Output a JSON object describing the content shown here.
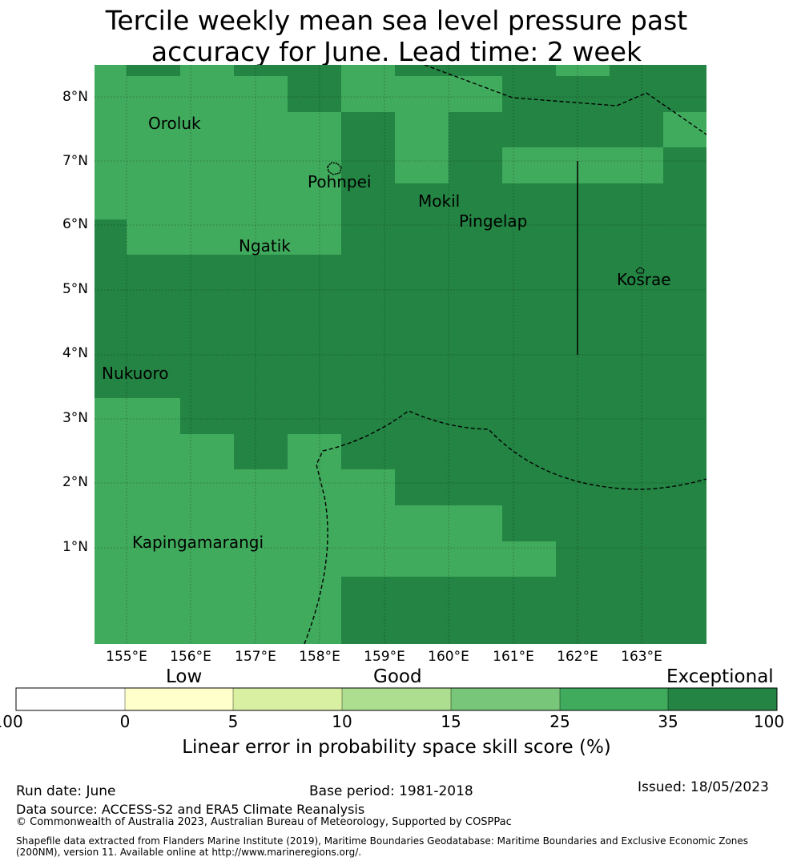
{
  "title": {
    "line1": "Tercile weekly mean sea level pressure past",
    "line2": "accuracy for June. Lead time: 2 week"
  },
  "map": {
    "lat_labels": [
      "8°N",
      "7°N",
      "6°N",
      "5°N",
      "4°N",
      "3°N",
      "2°N",
      "1°N"
    ],
    "lon_labels": [
      "155°E",
      "156°E",
      "157°E",
      "158°E",
      "159°E",
      "160°E",
      "161°E",
      "162°E",
      "163°E"
    ],
    "places": [
      "Oroluk",
      "Pohnpei",
      "Mokil",
      "Pingelap",
      "Ngatik",
      "Kosrae",
      "Nukuoro",
      "Kapingamarangi"
    ],
    "colors": {
      "good_25_35": "#41ab5d",
      "exceptional_35_100": "#238443"
    }
  },
  "colorbar": {
    "categories": [
      "Low",
      "Good",
      "Exceptional"
    ],
    "ticks": [
      "-100",
      "0",
      "5",
      "10",
      "15",
      "25",
      "35",
      "100"
    ],
    "colors": [
      "#ffffff",
      "#ffffcc",
      "#d9f0a3",
      "#addd8e",
      "#78c679",
      "#41ab5d",
      "#238443"
    ],
    "label": "Linear error in probability space skill score (%)"
  },
  "footer": {
    "run_date": "Run date: June",
    "base_period": "Base period: 1981-2018",
    "issued": "Issued: 18/05/2023",
    "data_source": "Data source: ACCESS-S2 and ERA5 Climate Reanalysis",
    "copyright": "© Commonwealth of Australia 2023, Australian Bureau of Meteorology, Supported by COSPPac",
    "shapefile_line1": "Shapefile data extracted from Flanders Marine Institute (2019), Maritime Boundaries Geodatabase: Maritime Boundaries and Exclusive Economic Zones",
    "shapefile_line2": "(200NM), version 11. Available online at http://www.marineregions.org/."
  }
}
